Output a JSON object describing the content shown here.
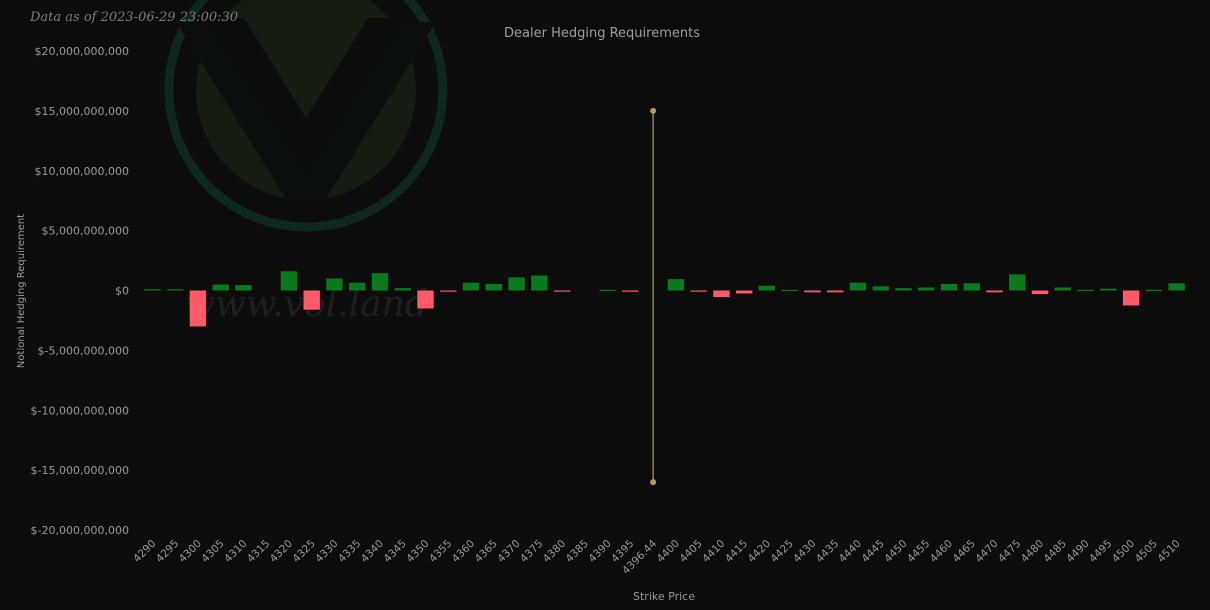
{
  "as_of_text": "Data as of 2023-06-29 23:00:30",
  "watermark_text": "www.vol.land",
  "colors": {
    "background": "#0c0c0d",
    "positive": "#0a7a1c",
    "negative": "#ff5a67",
    "spot_line": "#b89a62",
    "text": "#9a9a9a",
    "title": "#9e9e9e"
  },
  "chart_data": {
    "type": "bar",
    "title": "Dealer Hedging Requirements",
    "xlabel": "Strike Price",
    "ylabel": "Notional Hedging Requirement",
    "ylim": [
      -20000000000,
      20000000000
    ],
    "yticks": [
      20000000000,
      15000000000,
      10000000000,
      5000000000,
      0,
      -5000000000,
      -10000000000,
      -15000000000,
      -20000000000
    ],
    "ytick_labels": [
      "$20,000,000,000",
      "$15,000,000,000",
      "$10,000,000,000",
      "$5,000,000,000",
      "$0",
      "$-5,000,000,000",
      "$-10,000,000,000",
      "$-15,000,000,000",
      "$-20,000,000,000"
    ],
    "categories": [
      "4290",
      "4295",
      "4300",
      "4305",
      "4310",
      "4315",
      "4320",
      "4325",
      "4330",
      "4335",
      "4340",
      "4345",
      "4350",
      "4355",
      "4360",
      "4365",
      "4370",
      "4375",
      "4380",
      "4385",
      "4390",
      "4395",
      "4396.44",
      "4400",
      "4405",
      "4410",
      "4415",
      "4420",
      "4425",
      "4430",
      "4435",
      "4440",
      "4445",
      "4450",
      "4455",
      "4460",
      "4465",
      "4470",
      "4475",
      "4480",
      "4485",
      "4490",
      "4495",
      "4500",
      "4505",
      "4510"
    ],
    "values": [
      100000000,
      100000000,
      -3000000000,
      500000000,
      450000000,
      0,
      1600000000,
      -1600000000,
      1000000000,
      650000000,
      1450000000,
      200000000,
      -1500000000,
      -100000000,
      650000000,
      550000000,
      1100000000,
      1250000000,
      -100000000,
      0,
      50000000,
      -50000000,
      0,
      950000000,
      -100000000,
      -550000000,
      -250000000,
      400000000,
      50000000,
      -150000000,
      -150000000,
      650000000,
      350000000,
      200000000,
      250000000,
      550000000,
      600000000,
      -150000000,
      1350000000,
      -300000000,
      250000000,
      50000000,
      150000000,
      -1250000000,
      50000000,
      600000000
    ],
    "spot": {
      "category": "4396.44",
      "y_range": [
        -16000000000,
        15000000000
      ]
    },
    "grid": false,
    "legend": "none"
  }
}
